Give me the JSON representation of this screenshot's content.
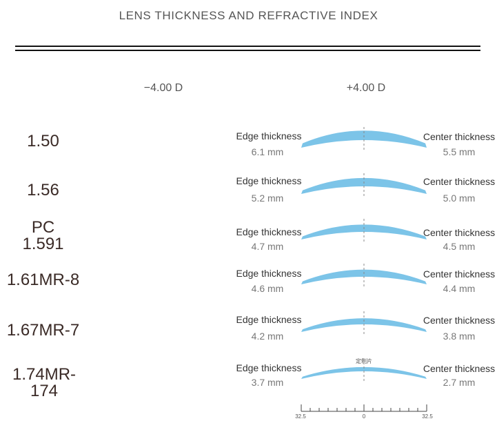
{
  "title": "LENS THICKNESS AND REFRACTIVE INDEX",
  "columns": {
    "minus": "−4.00 D",
    "plus": "+4.00 D"
  },
  "colors": {
    "lens": "#7cc4e8",
    "index_text": "#3a2a26"
  },
  "labels": {
    "edge": "Edge thickness",
    "center": "Center thickness"
  },
  "rows": [
    {
      "index_lines": [
        "1.50"
      ],
      "edge": "6.1 mm",
      "center": "5.5 mm",
      "edge_mm": 6.1,
      "center_mm": 5.5
    },
    {
      "index_lines": [
        "1.56"
      ],
      "edge": "5.2 mm",
      "center": "5.0 mm",
      "edge_mm": 5.2,
      "center_mm": 5.0
    },
    {
      "index_lines": [
        "PC",
        "1.591"
      ],
      "edge": "4.7 mm",
      "center": "4.5 mm",
      "edge_mm": 4.7,
      "center_mm": 4.5
    },
    {
      "index_lines": [
        "1.61MR-8"
      ],
      "edge": "4.6 mm",
      "center": "4.4 mm",
      "edge_mm": 4.6,
      "center_mm": 4.4
    },
    {
      "index_lines": [
        "1.67MR-7"
      ],
      "edge": "4.2 mm",
      "center": "3.8 mm",
      "edge_mm": 4.2,
      "center_mm": 3.8
    },
    {
      "index_lines": [
        "1.74MR-174"
      ],
      "edge": "3.7 mm",
      "center": "2.7 mm",
      "edge_mm": 3.7,
      "center_mm": 2.7
    }
  ],
  "custom_note": "定制片",
  "ruler": {
    "left": "32.5",
    "center": "0",
    "right": "32.5"
  }
}
